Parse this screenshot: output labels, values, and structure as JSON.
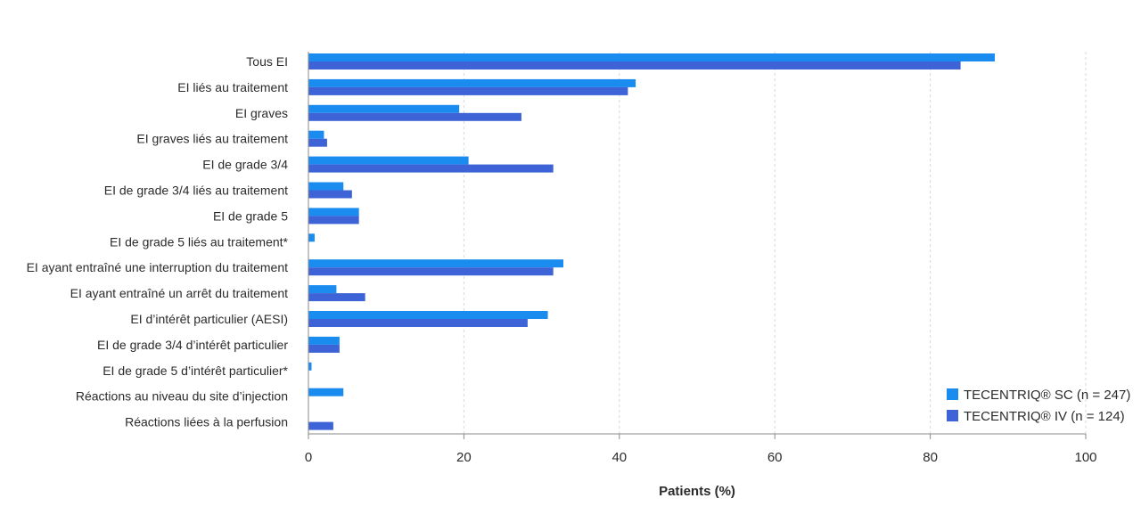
{
  "chart_data": {
    "type": "bar",
    "orientation": "horizontal",
    "categories": [
      "Tous EI",
      "EI liés au traitement",
      "EI graves",
      "EI graves liés au traitement",
      "EI de grade 3/4",
      "EI de grade 3/4 liés au traitement",
      "EI de grade 5",
      "EI de grade 5 liés au traitement*",
      "EI ayant entraîné une interruption du traitement",
      "EI ayant entraîné un arrêt du traitement",
      "EI d’intérêt particulier (AESI)",
      "EI de grade 3/4 d’intérêt particulier",
      "EI de grade 5 d’intérêt particulier*",
      "Réactions au niveau du site d’injection",
      "Réactions liées à la perfusion"
    ],
    "series": [
      {
        "name": "TECENTRIQ® SC (n = 247)",
        "color": "#1a8cf0",
        "values": [
          88.3,
          42.1,
          19.4,
          2.0,
          20.6,
          4.5,
          6.5,
          0.8,
          32.8,
          3.6,
          30.8,
          4.0,
          0.4,
          4.5,
          0
        ]
      },
      {
        "name": "TECENTRIQ® IV (n = 124)",
        "color": "#3d63d6",
        "values": [
          83.9,
          41.1,
          27.4,
          2.4,
          31.5,
          5.6,
          6.5,
          0,
          31.5,
          7.3,
          28.2,
          4.0,
          0,
          0,
          3.2
        ]
      }
    ],
    "xlabel": "Patients (%)",
    "ylabel": "",
    "xlim": [
      0,
      100
    ],
    "xticks": [
      0,
      20,
      40,
      60,
      80,
      100
    ],
    "grid": true,
    "legend_position": "bottom-right"
  }
}
